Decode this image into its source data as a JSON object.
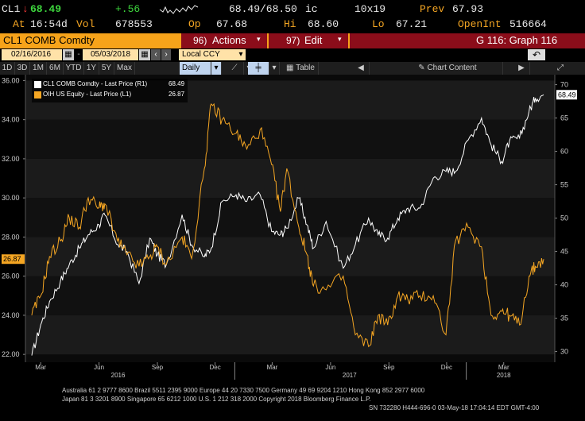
{
  "quote": {
    "ticker": "CL1",
    "last": "68.49",
    "change": "+.56",
    "vol_label": "Vol",
    "vol": "678553",
    "bid_ask": "68.49/68.50",
    "ic": "ic",
    "size": "10x19",
    "prev_label": "Prev",
    "prev": "67.93",
    "at_label": "At",
    "time": "16:54d",
    "open_label": "Op",
    "open": "67.68",
    "high_label": "Hi",
    "high": "68.60",
    "low_label": "Lo",
    "low": "67.21",
    "openint_label": "OpenInt",
    "openint": "516664"
  },
  "title_bar": {
    "title": "CL1 COMB Comdty",
    "actions_key": "96)",
    "actions": "Actions",
    "edit_key": "97)",
    "edit": "Edit",
    "graph": "G 116: Graph 116"
  },
  "controls": {
    "start_date": "02/16/2016",
    "end_date": "05/03/2018",
    "currency": "Local CCY"
  },
  "toolbar": {
    "periods": [
      "1D",
      "3D",
      "1M",
      "6M",
      "YTD",
      "1Y",
      "5Y",
      "Max"
    ],
    "frequency": "Daily",
    "table": "Table",
    "chart_content": "Chart Content"
  },
  "chart_data": {
    "type": "line",
    "legend": [
      {
        "name": "CL1 COMB Comdty - Last Price (R1)",
        "value": "68.49",
        "color": "#ffffff"
      },
      {
        "name": "OIH US Equity - Last Price (L1)",
        "value": "26.87",
        "color": "#f5a623"
      }
    ],
    "left_axis": {
      "ticks": [
        "36.00",
        "34.00",
        "32.00",
        "30.00",
        "28.00",
        "26.00",
        "24.00",
        "22.00"
      ],
      "range": [
        21.6,
        36.3
      ],
      "current_label": "26.87"
    },
    "right_axis": {
      "ticks": [
        "70",
        "65",
        "60",
        "55",
        "50",
        "45",
        "40",
        "35",
        "30"
      ],
      "range": [
        28.4,
        71.5
      ],
      "current_label": "68.49"
    },
    "x_months": [
      "Mar",
      "Jun",
      "Sep",
      "Dec",
      "Mar",
      "Jun",
      "Sep",
      "Dec",
      "Mar"
    ],
    "x_years": [
      "2016",
      "2017",
      "2018"
    ],
    "series": [
      {
        "name": "CL1 COMB Comdty",
        "axis": "right",
        "color": "#ffffff",
        "x": [
          "2016-02-16",
          "2016-03-01",
          "2016-03-15",
          "2016-04-01",
          "2016-04-15",
          "2016-05-01",
          "2016-05-15",
          "2016-06-01",
          "2016-06-10",
          "2016-07-01",
          "2016-07-15",
          "2016-08-03",
          "2016-08-20",
          "2016-09-01",
          "2016-09-15",
          "2016-10-10",
          "2016-10-25",
          "2016-11-14",
          "2016-11-25",
          "2016-12-12",
          "2017-01-03",
          "2017-01-20",
          "2017-02-10",
          "2017-02-28",
          "2017-03-14",
          "2017-03-24",
          "2017-04-12",
          "2017-04-25",
          "2017-05-05",
          "2017-05-25",
          "2017-06-21",
          "2017-07-10",
          "2017-07-31",
          "2017-08-15",
          "2017-08-30",
          "2017-09-15",
          "2017-10-01",
          "2017-10-20",
          "2017-11-10",
          "2017-11-30",
          "2017-12-15",
          "2018-01-04",
          "2018-01-25",
          "2018-02-09",
          "2018-02-26",
          "2018-03-10",
          "2018-03-26",
          "2018-04-10",
          "2018-04-20",
          "2018-05-03"
        ],
        "values": [
          29.4,
          34,
          37.5,
          40.5,
          43,
          45.5,
          47.5,
          49,
          50.5,
          46,
          45,
          40.2,
          47,
          44.5,
          43,
          50.5,
          46,
          44.2,
          45.5,
          52.5,
          53.5,
          52.5,
          53.5,
          48,
          47.5,
          48.5,
          53,
          49,
          45.5,
          49.5,
          42.5,
          46,
          50,
          47.5,
          47,
          50,
          51.5,
          51.5,
          56,
          57,
          57,
          61.7,
          65,
          61,
          58.5,
          61.5,
          62,
          66,
          68,
          68.49
        ]
      },
      {
        "name": "OIH US Equity",
        "axis": "left",
        "color": "#f5a623",
        "x": [
          "2016-02-16",
          "2016-03-01",
          "2016-03-15",
          "2016-04-01",
          "2016-04-15",
          "2016-05-01",
          "2016-05-15",
          "2016-06-01",
          "2016-06-10",
          "2016-06-30",
          "2016-07-15",
          "2016-08-03",
          "2016-08-20",
          "2016-09-01",
          "2016-09-15",
          "2016-10-10",
          "2016-10-25",
          "2016-11-14",
          "2016-11-25",
          "2016-12-12",
          "2017-01-03",
          "2017-01-20",
          "2017-02-10",
          "2017-02-28",
          "2017-03-14",
          "2017-03-24",
          "2017-04-12",
          "2017-04-25",
          "2017-05-05",
          "2017-05-25",
          "2017-06-21",
          "2017-07-10",
          "2017-07-31",
          "2017-08-15",
          "2017-08-30",
          "2017-09-15",
          "2017-10-01",
          "2017-10-20",
          "2017-11-10",
          "2017-11-30",
          "2017-12-15",
          "2018-01-04",
          "2018-01-25",
          "2018-02-09",
          "2018-02-26",
          "2018-03-10",
          "2018-03-26",
          "2018-04-10",
          "2018-04-20",
          "2018-05-03"
        ],
        "values": [
          24,
          25,
          27,
          27.8,
          29,
          28.5,
          30,
          29.5,
          29.7,
          27.8,
          27.1,
          26.5,
          27,
          27.5,
          26.6,
          28,
          26.9,
          31.5,
          34.8,
          34,
          33.3,
          32.5,
          33.5,
          31.7,
          29.3,
          31.5,
          28.5,
          27.1,
          25.5,
          25.3,
          26,
          23,
          22.4,
          24,
          23.5,
          25,
          24.8,
          25,
          25,
          23,
          27.8,
          28.5,
          27.5,
          24,
          24.2,
          24,
          23.5,
          26,
          26.5,
          26.87
        ]
      }
    ]
  },
  "footer": {
    "line1": "Australia 61 2 9777 8600 Brazil 5511 2395 9000 Europe 44 20 7330 7500 Germany 49 69 9204 1210 Hong Kong 852 2977 6000",
    "line2": "Japan 81 3 3201 8900        Singapore 65 6212 1000        U.S. 1 212 318 2000                    Copyright 2018 Bloomberg Finance L.P.",
    "line3": "SN 732280 H444-696-0 03-May-18 17:04:14 EDT  GMT-4:00"
  }
}
